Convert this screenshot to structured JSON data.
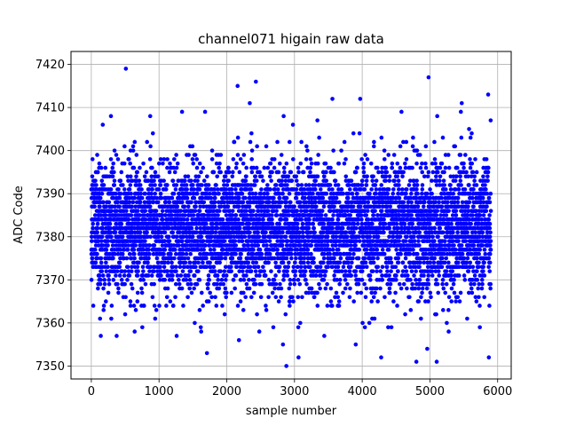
{
  "chart_data": {
    "type": "scatter",
    "title": "channel071 higain raw data",
    "xlabel": "sample number",
    "ylabel": "ADC Code",
    "xlim": [
      -300,
      6200
    ],
    "ylim": [
      7347,
      7423
    ],
    "xticks": [
      0,
      1000,
      2000,
      3000,
      4000,
      5000,
      6000
    ],
    "yticks": [
      7350,
      7360,
      7370,
      7380,
      7390,
      7400,
      7410,
      7420
    ],
    "grid": true,
    "marker_color": "#0000ff",
    "series": [
      {
        "n_points": 5900,
        "x_range": [
          0,
          5900
        ],
        "y_center": 7382,
        "dense_band": [
          7370,
          7395
        ],
        "notable_points": [
          {
            "x": 510,
            "y": 7419
          },
          {
            "x": 4980,
            "y": 7417
          },
          {
            "x": 2430,
            "y": 7416
          },
          {
            "x": 2160,
            "y": 7415
          },
          {
            "x": 5860,
            "y": 7413
          },
          {
            "x": 3560,
            "y": 7412
          },
          {
            "x": 3970,
            "y": 7412
          },
          {
            "x": 2340,
            "y": 7411
          },
          {
            "x": 5470,
            "y": 7411
          },
          {
            "x": 1340,
            "y": 7409
          },
          {
            "x": 1680,
            "y": 7409
          },
          {
            "x": 4580,
            "y": 7409
          },
          {
            "x": 290,
            "y": 7408
          },
          {
            "x": 870,
            "y": 7408
          },
          {
            "x": 2840,
            "y": 7408
          },
          {
            "x": 4800,
            "y": 7351
          },
          {
            "x": 5100,
            "y": 7351
          },
          {
            "x": 4960,
            "y": 7354
          },
          {
            "x": 3060,
            "y": 7352
          },
          {
            "x": 4280,
            "y": 7352
          },
          {
            "x": 5870,
            "y": 7352
          },
          {
            "x": 2880,
            "y": 7350
          },
          {
            "x": 2830,
            "y": 7355
          },
          {
            "x": 2180,
            "y": 7356
          },
          {
            "x": 1260,
            "y": 7357
          },
          {
            "x": 3440,
            "y": 7357
          },
          {
            "x": 640,
            "y": 7358
          }
        ]
      }
    ]
  }
}
